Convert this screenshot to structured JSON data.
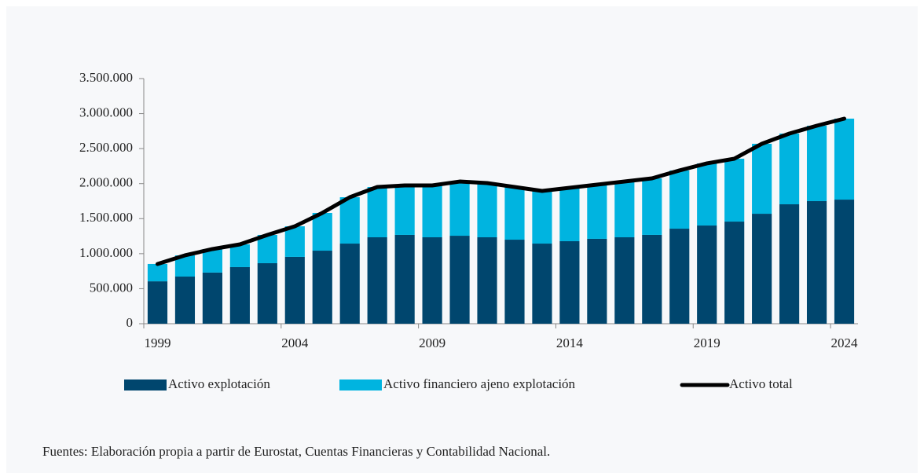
{
  "chart_data": {
    "type": "bar",
    "stacked": true,
    "categories": [
      "1999",
      null,
      null,
      null,
      null,
      "2004",
      null,
      null,
      null,
      null,
      "2009",
      null,
      null,
      null,
      null,
      "2014",
      null,
      null,
      null,
      null,
      "2019",
      null,
      null,
      null,
      null,
      "2024"
    ],
    "series": [
      {
        "name": "Activo explotación",
        "type": "bar",
        "color": "#00466e",
        "values": [
          605000,
          673000,
          730000,
          808000,
          864000,
          954000,
          1043000,
          1144000,
          1234000,
          1268000,
          1234000,
          1256000,
          1234000,
          1200000,
          1144000,
          1178000,
          1212000,
          1234000,
          1268000,
          1357000,
          1402000,
          1458000,
          1570000,
          1705000,
          1750000,
          1772000
        ]
      },
      {
        "name": "Activo financiero ajeno explotación",
        "type": "bar",
        "color": "#00b4e0",
        "values": [
          248000,
          303000,
          336000,
          325000,
          404000,
          437000,
          539000,
          662000,
          718000,
          706000,
          740000,
          774000,
          774000,
          752000,
          752000,
          763000,
          774000,
          796000,
          807000,
          831000,
          887000,
          898000,
          999000,
          1010000,
          1077000,
          1156000
        ]
      },
      {
        "name": "Activo total",
        "type": "line",
        "color": "#000000",
        "values": [
          853000,
          976000,
          1066000,
          1133000,
          1268000,
          1391000,
          1582000,
          1806000,
          1952000,
          1974000,
          1974000,
          2030000,
          2008000,
          1952000,
          1896000,
          1941000,
          1986000,
          2030000,
          2075000,
          2188000,
          2289000,
          2356000,
          2569000,
          2715000,
          2827000,
          2928000
        ]
      }
    ],
    "ylim": [
      0,
      3500000
    ],
    "yticks": [
      0,
      {
        "value": 500000,
        "label": "500.000"
      },
      {
        "value": 1000000,
        "label": "1.000.000"
      },
      {
        "value": 1500000,
        "label": "1.500.000"
      },
      {
        "value": 2000000,
        "label": "2.000.000"
      },
      {
        "value": 2500000,
        "label": "2.500.000"
      },
      {
        "value": 3000000,
        "label": "3.000.000"
      },
      {
        "value": 3500000,
        "label": "3.500.000"
      }
    ],
    "legend": "bottom",
    "source": "Fuentes: Elaboración propia a partir de Eurostat, Cuentas Financieras y Contabilidad Nacional."
  }
}
